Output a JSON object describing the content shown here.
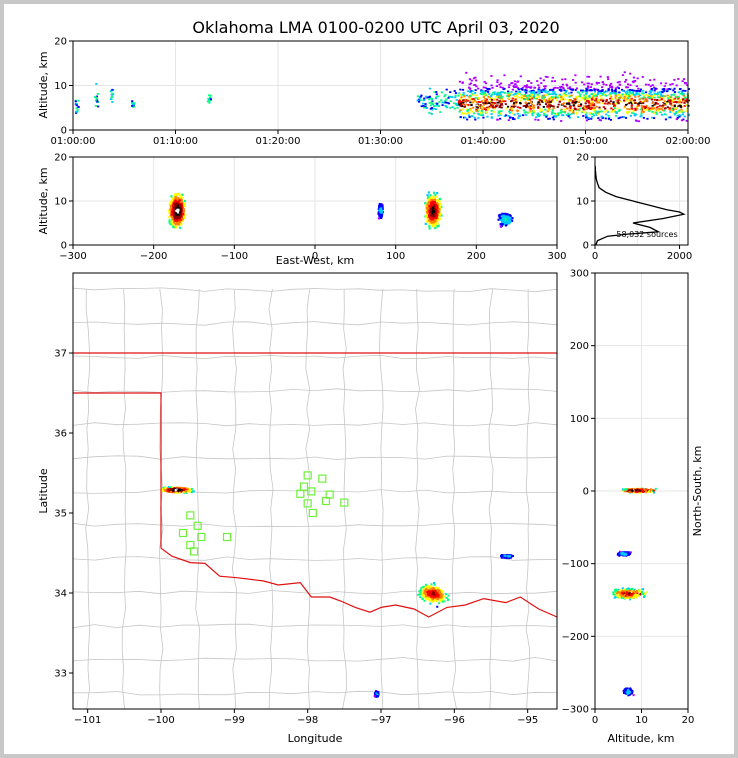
{
  "title": "Oklahoma LMA 0100-0200 UTC April 03, 2020",
  "colors": {
    "border": "#c8c8c8",
    "state_line": "#e01010",
    "county_line": "#c6c6c6",
    "station": "#6ef03a",
    "density_ramp": [
      "#b000ff",
      "#0000ff",
      "#00c8ff",
      "#00ff80",
      "#ffff00",
      "#ff8000",
      "#ff0000",
      "#8b0000",
      "#000000",
      "#ffffff"
    ]
  },
  "chart_data": [
    {
      "id": "time-height",
      "type": "heatmap",
      "ylabel": "Altitude, km",
      "xlim_minutes": [
        0,
        60
      ],
      "ylim": [
        0,
        20
      ],
      "x_ticks": [
        "01:00:00",
        "01:10:00",
        "01:20:00",
        "01:30:00",
        "01:40:00",
        "01:50:00",
        "02:00:00"
      ],
      "y_ticks": [
        "0",
        "10",
        "20"
      ],
      "clusters": [
        {
          "t": 0.3,
          "z0": 3,
          "z1": 8,
          "intensity": 0.2
        },
        {
          "t": 2.2,
          "z0": 3,
          "z1": 12,
          "intensity": 0.3
        },
        {
          "t": 3.7,
          "z0": 5,
          "z1": 11,
          "intensity": 0.3
        },
        {
          "t": 5.8,
          "z0": 5,
          "z1": 7,
          "intensity": 0.3
        },
        {
          "t": 13.2,
          "z0": 5,
          "z1": 10,
          "intensity": 0.3
        },
        {
          "t0": 33.5,
          "t1": 37.5,
          "z0": 3,
          "z1": 10,
          "intensity": 0.35
        },
        {
          "t0": 37.5,
          "t1": 60,
          "z0": 2,
          "z1": 18,
          "intensity": 1.0
        }
      ]
    },
    {
      "id": "east-west-altitude",
      "type": "heatmap",
      "xlabel": "East-West, km",
      "ylabel": "Altitude, km",
      "xlim": [
        -300,
        300
      ],
      "ylim": [
        0,
        20
      ],
      "x_ticks": [
        "−300",
        "−200",
        "−100",
        "0",
        "100",
        "200",
        "300"
      ],
      "y_ticks": [
        "0",
        "10",
        "20"
      ],
      "clusters": [
        {
          "x": -172,
          "z": 8,
          "sx": 14,
          "sz": 5,
          "intensity": 1.0
        },
        {
          "x": 80,
          "z": 8,
          "sx": 4,
          "sz": 2,
          "intensity": 0.3
        },
        {
          "x": 145,
          "z": 8,
          "sx": 14,
          "sz": 5,
          "intensity": 0.9
        },
        {
          "x": 235,
          "z": 6,
          "sx": 12,
          "sz": 2,
          "intensity": 0.35
        }
      ]
    },
    {
      "id": "altitude-histogram",
      "type": "line",
      "annotation": "58,032 sources",
      "xlim": [
        0,
        2200
      ],
      "ylim": [
        0,
        20
      ],
      "x_ticks": [
        "0",
        "2000"
      ],
      "y_ticks": [
        "0",
        "10",
        "20"
      ],
      "points": [
        [
          20,
          0
        ],
        [
          60,
          1
        ],
        [
          300,
          2
        ],
        [
          800,
          2.5
        ],
        [
          1500,
          3
        ],
        [
          1300,
          4
        ],
        [
          900,
          5
        ],
        [
          1600,
          6
        ],
        [
          2100,
          7
        ],
        [
          2000,
          7.5
        ],
        [
          1700,
          8
        ],
        [
          1300,
          9
        ],
        [
          900,
          10
        ],
        [
          500,
          11
        ],
        [
          250,
          12
        ],
        [
          100,
          13
        ],
        [
          60,
          14
        ],
        [
          30,
          15
        ],
        [
          20,
          16
        ],
        [
          10,
          17
        ],
        [
          5,
          18
        ]
      ]
    },
    {
      "id": "plan-view",
      "type": "scatter",
      "xlabel": "Longitude",
      "ylabel": "Latitude",
      "xlim": [
        -101.2,
        -94.6
      ],
      "ylim": [
        32.55,
        38
      ],
      "x_ticks": [
        "−101",
        "−100",
        "−99",
        "−98",
        "−97",
        "−96",
        "−95"
      ],
      "y_ticks": [
        "33",
        "34",
        "35",
        "36",
        "37"
      ],
      "clusters": [
        {
          "lon": -99.8,
          "lat": 35.3,
          "slon": 0.3,
          "slat": 0.05,
          "intensity": 1.0
        },
        {
          "lon": -96.3,
          "lat": 34.0,
          "slon": 0.25,
          "slat": 0.12,
          "intensity": 0.8
        },
        {
          "lon": -95.3,
          "lat": 34.47,
          "slon": 0.12,
          "slat": 0.03,
          "intensity": 0.3
        },
        {
          "lon": -97.07,
          "lat": 32.75,
          "slon": 0.04,
          "slat": 0.05,
          "intensity": 0.3
        }
      ],
      "stations": [
        [
          -98.0,
          35.47
        ],
        [
          -97.8,
          35.43
        ],
        [
          -98.05,
          35.33
        ],
        [
          -97.95,
          35.27
        ],
        [
          -98.1,
          35.24
        ],
        [
          -97.7,
          35.23
        ],
        [
          -97.5,
          35.13
        ],
        [
          -97.75,
          35.15
        ],
        [
          -98.0,
          35.12
        ],
        [
          -97.93,
          35.0
        ],
        [
          -99.6,
          34.97
        ],
        [
          -99.5,
          34.84
        ],
        [
          -99.7,
          34.75
        ],
        [
          -99.45,
          34.7
        ],
        [
          -99.6,
          34.6
        ],
        [
          -99.55,
          34.52
        ],
        [
          -99.1,
          34.7
        ]
      ]
    },
    {
      "id": "altitude-north-south",
      "type": "heatmap",
      "xlabel": "Altitude, km",
      "ylabel": "North-South, km",
      "xlim": [
        0,
        20
      ],
      "ylim": [
        -300,
        300
      ],
      "x_ticks": [
        "0",
        "10",
        "20"
      ],
      "y_ticks": [
        "−300",
        "−200",
        "−100",
        "0",
        "100",
        "200",
        "300"
      ],
      "clusters": [
        {
          "z": 8,
          "y": 2,
          "sz": 4,
          "sy": 4,
          "intensity": 1.0
        },
        {
          "z": 6,
          "y": -140,
          "sz": 4,
          "sy": 10,
          "intensity": 0.8
        },
        {
          "z": 6,
          "y": -85,
          "sz": 2,
          "sy": 4,
          "intensity": 0.3
        },
        {
          "z": 7,
          "y": -275,
          "sz": 1.5,
          "sy": 8,
          "intensity": 0.3
        }
      ]
    }
  ]
}
